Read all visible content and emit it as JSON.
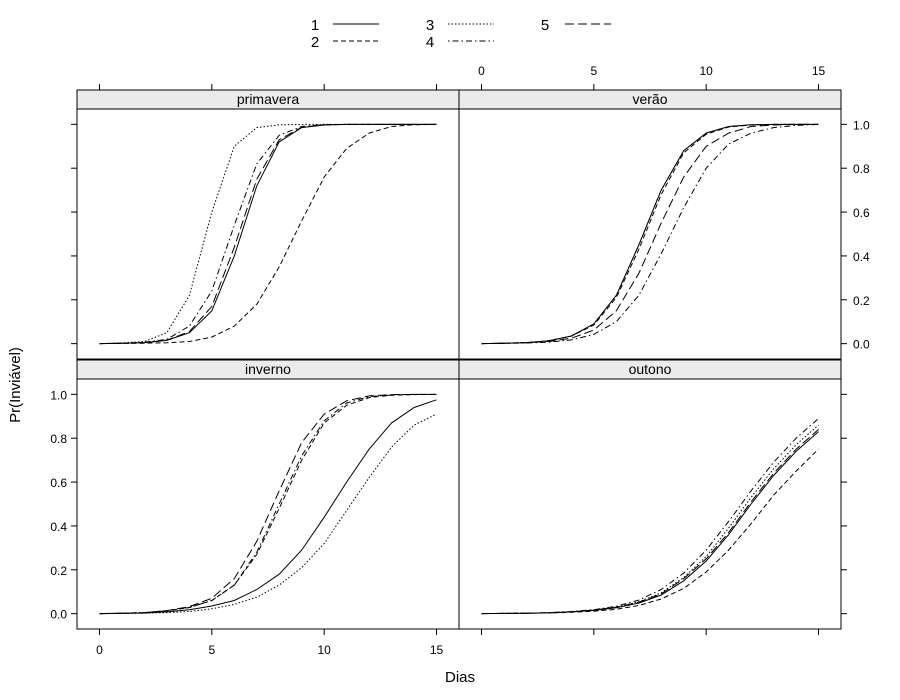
{
  "chart_data": {
    "type": "line",
    "ylabel": "Pr(Inviável)",
    "xlabel": "Dias",
    "xlim": [
      -1,
      16
    ],
    "ylim": [
      -0.07,
      1.07
    ],
    "xticks": [
      0,
      5,
      10,
      15
    ],
    "xtick_labels": [
      "0",
      "5",
      "10",
      "15"
    ],
    "yticks": [
      0,
      0.2,
      0.4,
      0.6,
      0.8,
      1.0
    ],
    "ytick_labels": [
      "0.0",
      "0.2",
      "0.4",
      "0.6",
      "0.8",
      "1.0"
    ],
    "grid": false,
    "legend_position": "top",
    "legend": [
      {
        "label": "1",
        "dash": "solid"
      },
      {
        "label": "2",
        "dash": "dashed"
      },
      {
        "label": "3",
        "dash": "dotted"
      },
      {
        "label": "4",
        "dash": "dotdash"
      },
      {
        "label": "5",
        "dash": "longdash"
      }
    ],
    "x": [
      0,
      1,
      2,
      3,
      4,
      5,
      6,
      7,
      8,
      9,
      10,
      11,
      12,
      13,
      14,
      15
    ],
    "panels": [
      {
        "title": "primavera",
        "series": [
          {
            "name": "1",
            "values": [
              0.0,
              0.002,
              0.005,
              0.015,
              0.05,
              0.15,
              0.4,
              0.72,
              0.92,
              0.985,
              0.997,
              1.0,
              1.0,
              1.0,
              1.0,
              1.0
            ]
          },
          {
            "name": "2",
            "values": [
              0.0,
              0.001,
              0.002,
              0.004,
              0.01,
              0.03,
              0.08,
              0.18,
              0.35,
              0.56,
              0.76,
              0.89,
              0.96,
              0.99,
              0.998,
              1.0
            ]
          },
          {
            "name": "3",
            "values": [
              0.0,
              0.003,
              0.01,
              0.05,
              0.22,
              0.6,
              0.9,
              0.985,
              0.998,
              1.0,
              1.0,
              1.0,
              1.0,
              1.0,
              1.0,
              1.0
            ]
          },
          {
            "name": "4",
            "values": [
              0.0,
              0.002,
              0.006,
              0.02,
              0.08,
              0.24,
              0.54,
              0.82,
              0.95,
              0.99,
              0.999,
              1.0,
              1.0,
              1.0,
              1.0,
              1.0
            ]
          },
          {
            "name": "5",
            "values": [
              0.0,
              0.002,
              0.005,
              0.016,
              0.055,
              0.17,
              0.44,
              0.75,
              0.93,
              0.987,
              0.998,
              1.0,
              1.0,
              1.0,
              1.0,
              1.0
            ]
          }
        ]
      },
      {
        "title": "verão",
        "series": [
          {
            "name": "1",
            "values": [
              0.0,
              0.002,
              0.005,
              0.013,
              0.035,
              0.09,
              0.22,
              0.45,
              0.7,
              0.88,
              0.96,
              0.99,
              0.998,
              1.0,
              1.0,
              1.0
            ]
          },
          {
            "name": "2",
            "values": [
              0.0,
              0.002,
              0.005,
              0.013,
              0.034,
              0.085,
              0.21,
              0.43,
              0.68,
              0.87,
              0.955,
              0.988,
              0.997,
              1.0,
              1.0,
              1.0
            ]
          },
          {
            "name": "3",
            "values": [
              0.0,
              0.002,
              0.005,
              0.013,
              0.035,
              0.09,
              0.22,
              0.45,
              0.7,
              0.88,
              0.96,
              0.99,
              0.998,
              1.0,
              1.0,
              1.0
            ]
          },
          {
            "name": "4",
            "values": [
              0.0,
              0.001,
              0.003,
              0.007,
              0.017,
              0.042,
              0.1,
              0.22,
              0.41,
              0.62,
              0.8,
              0.91,
              0.96,
              0.985,
              0.995,
              1.0
            ]
          },
          {
            "name": "5",
            "values": [
              0.0,
              0.002,
              0.004,
              0.01,
              0.025,
              0.062,
              0.15,
              0.32,
              0.55,
              0.76,
              0.9,
              0.96,
              0.99,
              0.997,
              1.0,
              1.0
            ]
          }
        ]
      },
      {
        "title": "inverno",
        "series": [
          {
            "name": "1",
            "values": [
              0.0,
              0.001,
              0.003,
              0.008,
              0.018,
              0.035,
              0.06,
              0.11,
              0.18,
              0.29,
              0.44,
              0.6,
              0.75,
              0.87,
              0.94,
              0.975
            ]
          },
          {
            "name": "2",
            "values": [
              0.0,
              0.002,
              0.005,
              0.013,
              0.028,
              0.06,
              0.13,
              0.27,
              0.48,
              0.7,
              0.87,
              0.95,
              0.985,
              0.996,
              0.999,
              1.0
            ]
          },
          {
            "name": "3",
            "values": [
              0.0,
              0.001,
              0.002,
              0.005,
              0.01,
              0.022,
              0.042,
              0.075,
              0.13,
              0.21,
              0.32,
              0.47,
              0.62,
              0.76,
              0.86,
              0.91
            ]
          },
          {
            "name": "4",
            "values": [
              0.0,
              0.002,
              0.005,
              0.013,
              0.028,
              0.06,
              0.13,
              0.28,
              0.5,
              0.72,
              0.88,
              0.96,
              0.99,
              0.997,
              1.0,
              1.0
            ]
          },
          {
            "name": "5",
            "values": [
              0.0,
              0.002,
              0.005,
              0.014,
              0.032,
              0.07,
              0.16,
              0.33,
              0.56,
              0.78,
              0.91,
              0.97,
              0.993,
              0.999,
              1.0,
              1.0
            ]
          }
        ]
      },
      {
        "title": "outono",
        "series": [
          {
            "name": "1",
            "values": [
              0.0,
              0.001,
              0.002,
              0.004,
              0.008,
              0.015,
              0.027,
              0.048,
              0.085,
              0.15,
              0.24,
              0.36,
              0.5,
              0.63,
              0.74,
              0.83
            ]
          },
          {
            "name": "2",
            "values": [
              0.0,
              0.001,
              0.002,
              0.003,
              0.006,
              0.011,
              0.02,
              0.037,
              0.067,
              0.115,
              0.19,
              0.29,
              0.41,
              0.54,
              0.65,
              0.75
            ]
          },
          {
            "name": "3",
            "values": [
              0.0,
              0.001,
              0.002,
              0.004,
              0.008,
              0.016,
              0.03,
              0.054,
              0.095,
              0.165,
              0.26,
              0.39,
              0.53,
              0.66,
              0.77,
              0.86
            ]
          },
          {
            "name": "4",
            "values": [
              0.0,
              0.001,
              0.002,
              0.005,
              0.01,
              0.018,
              0.034,
              0.062,
              0.11,
              0.185,
              0.29,
              0.42,
              0.56,
              0.69,
              0.8,
              0.89
            ]
          },
          {
            "name": "5",
            "values": [
              0.0,
              0.001,
              0.002,
              0.004,
              0.008,
              0.016,
              0.029,
              0.052,
              0.09,
              0.16,
              0.25,
              0.37,
              0.51,
              0.64,
              0.75,
              0.84
            ]
          }
        ]
      }
    ]
  }
}
